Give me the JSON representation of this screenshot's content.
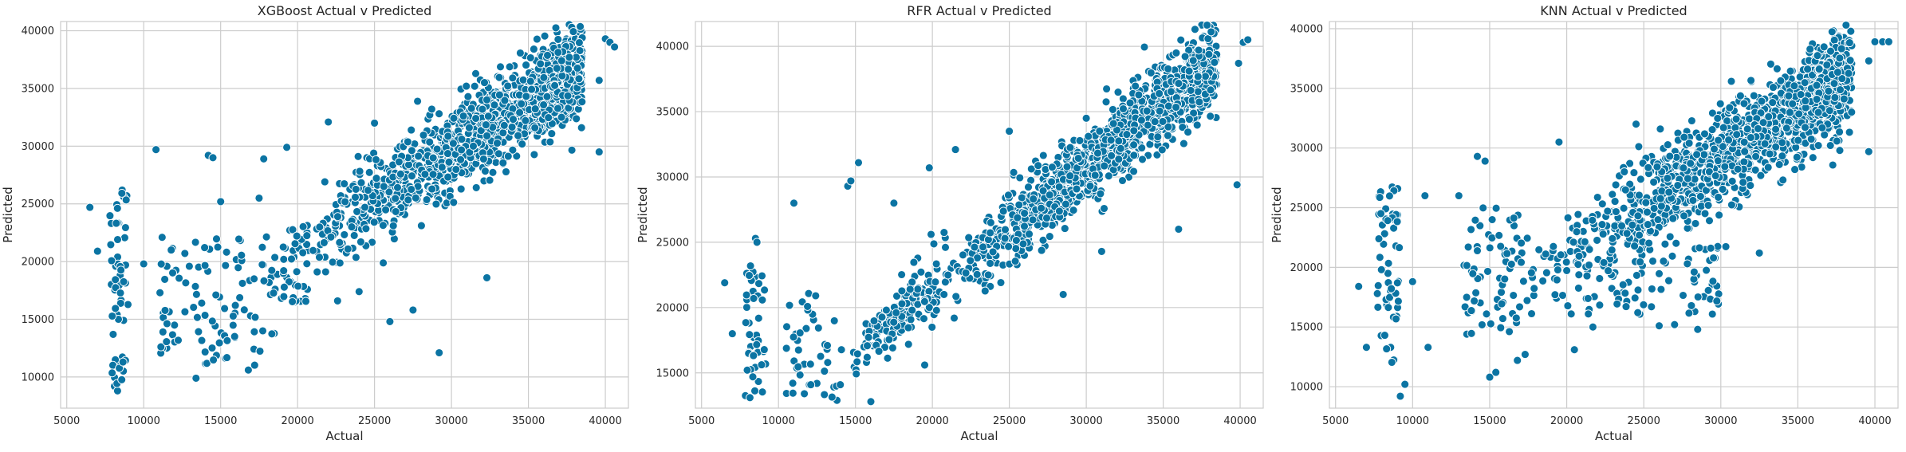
{
  "figure_name": "three-panel scatter of actual vs predicted",
  "colors": {
    "marker": "#0b74a3",
    "grid": "#cccccc",
    "text": "#262626",
    "background": "#ffffff"
  },
  "chart_data": [
    {
      "id": "xgb",
      "type": "scatter",
      "title": "XGBoost Actual v Predicted",
      "xlabel": "Actual",
      "ylabel": "Predicted",
      "xlim": [
        4600,
        41500
      ],
      "ylim": [
        7300,
        40800
      ],
      "xticks": [
        5000,
        10000,
        15000,
        20000,
        25000,
        30000,
        35000,
        40000
      ],
      "yticks": [
        10000,
        15000,
        20000,
        25000,
        30000,
        35000,
        40000
      ],
      "grid": true,
      "outliers": [
        [
          6500,
          24700
        ],
        [
          7000,
          20900
        ],
        [
          8100,
          9200
        ],
        [
          8300,
          8800
        ],
        [
          8600,
          26200
        ],
        [
          8900,
          25700
        ],
        [
          10000,
          19800
        ],
        [
          10800,
          29700
        ],
        [
          11200,
          22100
        ],
        [
          14200,
          29200
        ],
        [
          14500,
          29000
        ],
        [
          15000,
          25200
        ],
        [
          16800,
          10600
        ],
        [
          17500,
          25500
        ],
        [
          17800,
          28900
        ],
        [
          13400,
          9900
        ],
        [
          11500,
          12500
        ],
        [
          12000,
          14500
        ],
        [
          19300,
          29900
        ],
        [
          20500,
          16800
        ],
        [
          22000,
          32100
        ],
        [
          22600,
          16600
        ],
        [
          24000,
          17400
        ],
        [
          24500,
          29000
        ],
        [
          25000,
          32000
        ],
        [
          26000,
          14800
        ],
        [
          27500,
          15800
        ],
        [
          29200,
          12100
        ],
        [
          32300,
          18600
        ],
        [
          39600,
          29500
        ],
        [
          39600,
          35700
        ],
        [
          37200,
          31800
        ],
        [
          40000,
          39300
        ],
        [
          40300,
          39000
        ],
        [
          40600,
          38600
        ],
        [
          38400,
          37300
        ]
      ],
      "clusters": [
        {
          "n": 55,
          "x": [
            7800,
            9000
          ],
          "y": [
            9000,
            26000
          ],
          "uniform": true,
          "seed": 11
        },
        {
          "n": 60,
          "x": [
            13200,
            18500
          ],
          "y": [
            11000,
            22500
          ],
          "uniform": true,
          "seed": 12
        },
        {
          "n": 30,
          "x": [
            11000,
            14000
          ],
          "y": [
            12000,
            22000
          ],
          "uniform": true,
          "seed": 13
        },
        {
          "n": 40,
          "x": [
            17500,
            21500
          ],
          "y": [
            16500,
            21500
          ],
          "uniform": true,
          "seed": 14
        },
        {
          "n": 1300,
          "x": [
            19000,
            38500
          ],
          "slope": 0.85,
          "intercept": 4100,
          "sd": 1900,
          "seed": 15
        }
      ]
    },
    {
      "id": "rfr",
      "type": "scatter",
      "title": "RFR Actual v Predicted",
      "xlabel": "Actual",
      "ylabel": "Predicted",
      "xlim": [
        4600,
        41500
      ],
      "ylim": [
        12300,
        41900
      ],
      "xticks": [
        5000,
        10000,
        15000,
        20000,
        25000,
        30000,
        35000,
        40000
      ],
      "yticks": [
        15000,
        20000,
        25000,
        30000,
        35000,
        40000
      ],
      "grid": true,
      "outliers": [
        [
          6500,
          21900
        ],
        [
          7000,
          18000
        ],
        [
          8500,
          25300
        ],
        [
          8600,
          25000
        ],
        [
          11000,
          28000
        ],
        [
          11800,
          18400
        ],
        [
          14500,
          29300
        ],
        [
          14700,
          29700
        ],
        [
          15200,
          31100
        ],
        [
          16000,
          12800
        ],
        [
          17500,
          28000
        ],
        [
          19500,
          15600
        ],
        [
          19800,
          30700
        ],
        [
          21500,
          32100
        ],
        [
          23000,
          22500
        ],
        [
          25000,
          33500
        ],
        [
          28500,
          21000
        ],
        [
          30000,
          34500
        ],
        [
          31000,
          24300
        ],
        [
          36000,
          26000
        ],
        [
          39800,
          29400
        ],
        [
          39900,
          38700
        ],
        [
          40200,
          40300
        ],
        [
          40500,
          40500
        ],
        [
          38200,
          37300
        ],
        [
          37500,
          36500
        ],
        [
          12500,
          14200
        ],
        [
          13200,
          15800
        ],
        [
          13800,
          12900
        ]
      ],
      "clusters": [
        {
          "n": 45,
          "x": [
            7800,
            9200
          ],
          "y": [
            13000,
            23500
          ],
          "uniform": true,
          "seed": 21
        },
        {
          "n": 40,
          "x": [
            10500,
            14500
          ],
          "y": [
            13000,
            22000
          ],
          "uniform": true,
          "seed": 22
        },
        {
          "n": 90,
          "x": [
            14500,
            18500
          ],
          "slope": 1.0,
          "intercept": 1500,
          "sd": 900,
          "seed": 23
        },
        {
          "n": 70,
          "x": [
            16500,
            20500
          ],
          "slope": 0.85,
          "intercept": 4500,
          "sd": 1600,
          "seed": 24
        },
        {
          "n": 1300,
          "x": [
            19000,
            38500
          ],
          "slope": 0.95,
          "intercept": 2200,
          "sd": 1500,
          "seed": 25
        }
      ]
    },
    {
      "id": "knn",
      "type": "scatter",
      "title": "KNN Actual v Predicted",
      "xlabel": "Actual",
      "ylabel": "Predicted",
      "xlim": [
        4600,
        41500
      ],
      "ylim": [
        8200,
        40600
      ],
      "xticks": [
        5000,
        10000,
        15000,
        20000,
        25000,
        30000,
        35000,
        40000
      ],
      "yticks": [
        10000,
        15000,
        20000,
        25000,
        30000,
        35000,
        40000
      ],
      "grid": true,
      "outliers": [
        [
          6500,
          18400
        ],
        [
          7000,
          13300
        ],
        [
          9200,
          9200
        ],
        [
          9500,
          10200
        ],
        [
          10000,
          18800
        ],
        [
          10800,
          26000
        ],
        [
          11000,
          13300
        ],
        [
          13000,
          26000
        ],
        [
          14200,
          29300
        ],
        [
          14700,
          28900
        ],
        [
          15000,
          10800
        ],
        [
          15400,
          11200
        ],
        [
          16800,
          12200
        ],
        [
          17300,
          12700
        ],
        [
          19500,
          30500
        ],
        [
          20500,
          13100
        ],
        [
          21700,
          15000
        ],
        [
          24500,
          32000
        ],
        [
          25500,
          16700
        ],
        [
          26000,
          15100
        ],
        [
          27000,
          15200
        ],
        [
          28500,
          14800
        ],
        [
          32500,
          21200
        ],
        [
          39600,
          29700
        ],
        [
          39600,
          37300
        ],
        [
          40000,
          38900
        ],
        [
          40500,
          38900
        ],
        [
          40900,
          38900
        ],
        [
          37200,
          38200
        ],
        [
          38500,
          36400
        ]
      ],
      "clusters": [
        {
          "n": 55,
          "x": [
            7700,
            9200
          ],
          "y": [
            11500,
            27000
          ],
          "uniform": true,
          "seed": 31
        },
        {
          "n": 70,
          "x": [
            13300,
            17500
          ],
          "y": [
            14000,
            25000
          ],
          "uniform": true,
          "seed": 32
        },
        {
          "n": 50,
          "x": [
            17500,
            22000
          ],
          "y": [
            16000,
            22000
          ],
          "uniform": true,
          "seed": 33
        },
        {
          "n": 70,
          "x": [
            22000,
            30000
          ],
          "y": [
            16000,
            22000
          ],
          "uniform": true,
          "seed": 34
        },
        {
          "n": 1300,
          "x": [
            19000,
            38500
          ],
          "slope": 0.8,
          "intercept": 5200,
          "sd": 2100,
          "seed": 35
        }
      ]
    }
  ]
}
